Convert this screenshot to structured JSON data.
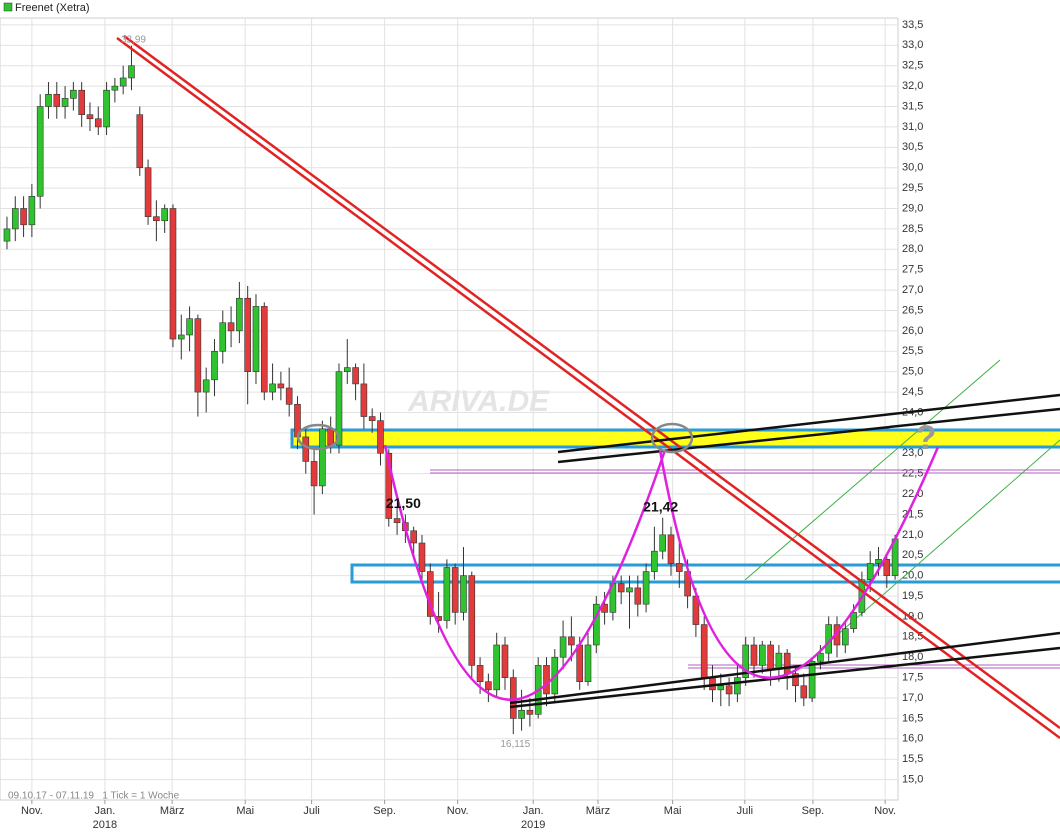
{
  "chart_data": {
    "type": "candlestick",
    "title": "Freenet (Xetra)",
    "footnote": "09.10.17 - 07.11.19   1 Tick = 1 Woche",
    "watermark": "ARIVA.DE",
    "question_mark": "?",
    "up_color": "#2fc42f",
    "down_color": "#e23b3b",
    "legend_color": "#2fc42f",
    "grid": true,
    "open": [
      28.2,
      28.5,
      29.0,
      28.6,
      29.3,
      31.5,
      31.8,
      31.5,
      31.7,
      31.9,
      31.3,
      31.2,
      31.0,
      31.9,
      32.0,
      32.2,
      31.3,
      30.0,
      28.8,
      28.7,
      29.0,
      25.8,
      25.9,
      26.3,
      24.5,
      24.8,
      25.5,
      26.2,
      26.0,
      26.8,
      25.0,
      26.6,
      24.5,
      24.7,
      24.6,
      24.2,
      23.4,
      22.8,
      22.2,
      23.6,
      23.2,
      25.0,
      25.1,
      24.7,
      23.9,
      23.8,
      23.0,
      21.4,
      21.3,
      21.1,
      20.8,
      20.1,
      19.0,
      18.9,
      20.2,
      19.1,
      20.0,
      17.8,
      17.4,
      17.2,
      18.3,
      17.5,
      16.5,
      16.7,
      16.6,
      17.8,
      17.1,
      18.0,
      18.5,
      18.3,
      17.4,
      18.3,
      19.3,
      19.1,
      19.8,
      19.6,
      19.7,
      19.3,
      20.1,
      20.6,
      21.0,
      20.3,
      20.1,
      19.5,
      18.8,
      17.5,
      17.2,
      17.3,
      17.1,
      17.5,
      18.3,
      17.8,
      18.3,
      17.7,
      18.1,
      17.6,
      17.3,
      17.0,
      17.9,
      18.1,
      18.8,
      18.3,
      18.7,
      19.1,
      19.9,
      20.3,
      20.4,
      20.0
    ],
    "high": [
      28.8,
      29.3,
      29.3,
      29.6,
      31.8,
      32.1,
      32.1,
      32.0,
      32.1,
      32.1,
      31.6,
      31.5,
      32.1,
      32.2,
      32.5,
      32.99,
      31.5,
      30.2,
      29.2,
      29.1,
      29.1,
      26.4,
      26.6,
      26.4,
      25.1,
      25.8,
      26.5,
      26.6,
      27.2,
      27.1,
      26.9,
      26.7,
      25.2,
      25.0,
      25.1,
      24.4,
      23.6,
      23.1,
      23.8,
      23.9,
      25.2,
      25.8,
      25.2,
      25.2,
      24.1,
      24.0,
      23.1,
      21.7,
      21.5,
      21.2,
      21.0,
      20.3,
      19.6,
      20.4,
      20.3,
      20.7,
      20.1,
      18.0,
      17.6,
      18.6,
      18.5,
      17.7,
      17.2,
      17.0,
      18.0,
      18.0,
      18.2,
      18.9,
      19.0,
      18.5,
      18.6,
      19.5,
      19.6,
      20.0,
      20.0,
      20.0,
      20.0,
      20.3,
      21.2,
      21.42,
      21.2,
      20.8,
      20.4,
      19.7,
      19.0,
      17.8,
      17.6,
      17.5,
      17.8,
      18.5,
      18.5,
      18.4,
      18.4,
      18.3,
      18.2,
      17.8,
      17.6,
      18.0,
      18.3,
      19.0,
      19.0,
      18.9,
      19.3,
      20.1,
      20.6,
      20.7,
      20.5,
      21.0
    ],
    "low": [
      28.0,
      28.2,
      28.3,
      28.3,
      29.0,
      31.2,
      31.2,
      31.2,
      31.4,
      31.0,
      30.9,
      30.8,
      30.8,
      31.6,
      31.8,
      31.9,
      29.8,
      28.6,
      28.2,
      28.4,
      25.6,
      25.3,
      25.5,
      23.9,
      24.0,
      24.4,
      25.2,
      25.6,
      25.7,
      24.2,
      24.7,
      24.3,
      24.3,
      24.3,
      23.9,
      23.1,
      22.5,
      21.5,
      22.0,
      23.0,
      23.0,
      24.7,
      24.3,
      23.6,
      23.5,
      22.7,
      21.2,
      21.0,
      20.8,
      20.5,
      19.8,
      18.8,
      18.6,
      18.7,
      18.8,
      18.9,
      17.5,
      17.1,
      16.9,
      17.0,
      17.2,
      16.115,
      16.2,
      16.3,
      16.5,
      16.8,
      16.9,
      17.7,
      17.9,
      17.2,
      17.3,
      18.1,
      18.8,
      18.9,
      19.3,
      18.7,
      19.0,
      19.1,
      19.9,
      20.4,
      20.0,
      19.7,
      19.2,
      18.5,
      17.2,
      16.9,
      16.8,
      16.8,
      16.9,
      17.3,
      17.5,
      17.6,
      17.3,
      17.4,
      17.2,
      16.9,
      16.8,
      16.9,
      17.7,
      17.9,
      18.0,
      18.1,
      18.6,
      19.0,
      19.6,
      20.0,
      19.7,
      19.9
    ],
    "close": [
      28.5,
      29.0,
      28.6,
      29.3,
      31.5,
      31.8,
      31.5,
      31.7,
      31.9,
      31.3,
      31.2,
      31.0,
      31.9,
      32.0,
      32.2,
      32.5,
      30.0,
      28.8,
      28.7,
      29.0,
      25.8,
      25.9,
      26.3,
      24.5,
      24.8,
      25.5,
      26.2,
      26.0,
      26.8,
      25.0,
      26.6,
      24.5,
      24.7,
      24.6,
      24.2,
      23.4,
      22.8,
      22.2,
      23.6,
      23.2,
      25.0,
      25.1,
      24.7,
      23.9,
      23.8,
      23.0,
      21.4,
      21.3,
      21.1,
      20.8,
      20.1,
      19.0,
      18.9,
      20.2,
      19.1,
      20.0,
      17.8,
      17.4,
      17.2,
      18.3,
      17.5,
      16.5,
      16.7,
      16.6,
      17.8,
      17.1,
      18.0,
      18.5,
      18.3,
      17.4,
      18.3,
      19.3,
      19.1,
      19.8,
      19.6,
      19.7,
      19.3,
      20.1,
      20.6,
      21.0,
      20.3,
      20.1,
      19.5,
      18.8,
      17.5,
      17.2,
      17.3,
      17.1,
      17.5,
      18.3,
      17.8,
      18.3,
      17.7,
      18.1,
      17.6,
      17.3,
      17.0,
      17.9,
      18.1,
      18.8,
      18.3,
      18.7,
      19.1,
      19.9,
      20.3,
      20.4,
      20.0,
      20.9
    ],
    "annotations": [
      {
        "label": "32,99",
        "value": 32.99,
        "bold": false
      },
      {
        "label": "21,50",
        "value": 21.5,
        "bold": true
      },
      {
        "label": "21,42",
        "value": 21.42,
        "bold": true
      },
      {
        "label": "16,115",
        "value": 16.115,
        "bold": false
      }
    ],
    "xlim": [
      -0.84,
      107.35
    ],
    "xticks": [
      {
        "value": 3.0,
        "label": "Nov."
      },
      {
        "value": 11.8,
        "label": "Jan."
      },
      {
        "value": 19.9,
        "label": "März"
      },
      {
        "value": 28.7,
        "label": "Mai"
      },
      {
        "value": 36.7,
        "label": "Juli"
      },
      {
        "value": 45.5,
        "label": "Sep."
      },
      {
        "value": 54.3,
        "label": "Nov."
      },
      {
        "value": 63.4,
        "label": "Jan."
      },
      {
        "value": 71.2,
        "label": "März"
      },
      {
        "value": 80.2,
        "label": "Mai"
      },
      {
        "value": 88.9,
        "label": "Juli"
      },
      {
        "value": 97.1,
        "label": "Sep."
      },
      {
        "value": 105.8,
        "label": "Nov."
      }
    ],
    "year_labels": [
      {
        "value": 11.8,
        "label": "2018"
      },
      {
        "value": 63.4,
        "label": "2019"
      }
    ],
    "ylim": [
      14.5,
      33.67
    ],
    "yticks": [
      {
        "value": 15,
        "label": "15,0"
      },
      {
        "value": 15.5,
        "label": "15,5"
      },
      {
        "value": 16,
        "label": "16,0"
      },
      {
        "value": 16.5,
        "label": "16,5"
      },
      {
        "value": 17,
        "label": "17,0"
      },
      {
        "value": 17.5,
        "label": "17,5"
      },
      {
        "value": 18,
        "label": "18,0"
      },
      {
        "value": 18.5,
        "label": "18,5"
      },
      {
        "value": 19,
        "label": "19,0"
      },
      {
        "value": 19.5,
        "label": "19,5"
      },
      {
        "value": 20,
        "label": "20,0"
      },
      {
        "value": 20.5,
        "label": "20,5"
      },
      {
        "value": 21,
        "label": "21,0"
      },
      {
        "value": 21.5,
        "label": "21,5"
      },
      {
        "value": 22,
        "label": "22,0"
      },
      {
        "value": 22.5,
        "label": "22,5"
      },
      {
        "value": 23,
        "label": "23,0"
      },
      {
        "value": 23.5,
        "label": "23,5"
      },
      {
        "value": 24,
        "label": "24,0"
      },
      {
        "value": 24.5,
        "label": "24,5"
      },
      {
        "value": 25,
        "label": "25,0"
      },
      {
        "value": 25.5,
        "label": "25,5"
      },
      {
        "value": 26,
        "label": "26,0"
      },
      {
        "value": 26.5,
        "label": "26,5"
      },
      {
        "value": 27,
        "label": "27,0"
      },
      {
        "value": 27.5,
        "label": "27,5"
      },
      {
        "value": 28,
        "label": "28,0"
      },
      {
        "value": 28.5,
        "label": "28,5"
      },
      {
        "value": 29,
        "label": "29,0"
      },
      {
        "value": 29.5,
        "label": "29,5"
      },
      {
        "value": 30,
        "label": "30,0"
      },
      {
        "value": 30.5,
        "label": "30,5"
      },
      {
        "value": 31,
        "label": "31,0"
      },
      {
        "value": 31.5,
        "label": "31,5"
      },
      {
        "value": 32,
        "label": "32,0"
      },
      {
        "value": 32.5,
        "label": "32,5"
      },
      {
        "value": 33,
        "label": "33,0"
      },
      {
        "value": 33.5,
        "label": "33,5"
      }
    ]
  }
}
